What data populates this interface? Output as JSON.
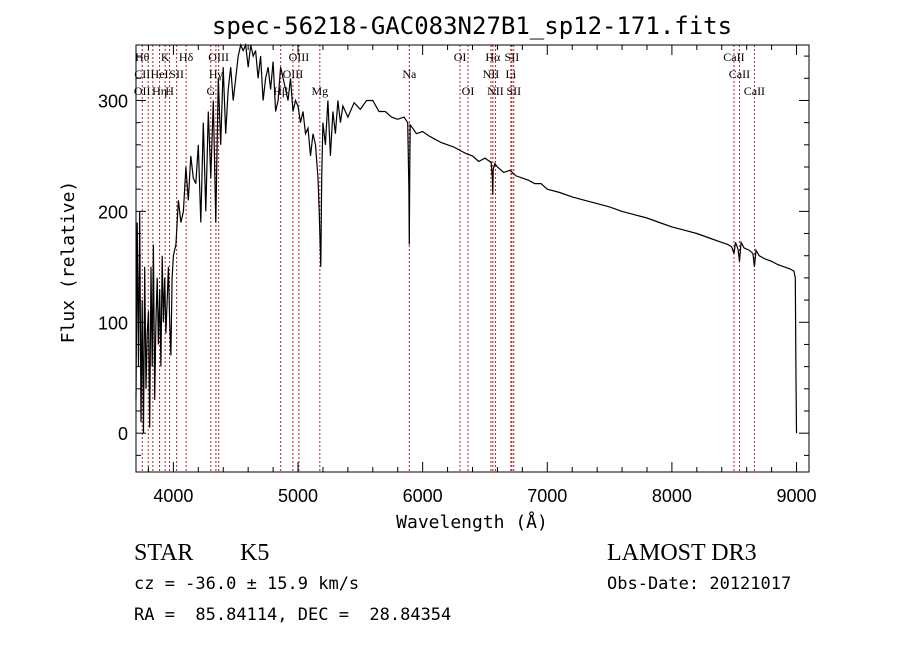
{
  "chart_data": {
    "type": "line",
    "title": "spec-56218-GAC083N27B1_sp12-171.fits",
    "xlabel": "Wavelength (Å)",
    "ylabel": "Flux (relative)",
    "xlim": [
      3700,
      9100
    ],
    "ylim": [
      -35,
      350
    ],
    "x_ticks": [
      4000,
      5000,
      6000,
      7000,
      8000,
      9000
    ],
    "x_tick_labels": [
      "4000",
      "5000",
      "6000",
      "7000",
      "8000",
      "9000"
    ],
    "y_ticks": [
      0,
      100,
      200,
      300
    ],
    "y_tick_labels": [
      "0",
      "100",
      "200",
      "300"
    ],
    "series": [
      {
        "name": "flux",
        "x": [
          3700,
          3710,
          3720,
          3730,
          3740,
          3750,
          3760,
          3770,
          3780,
          3790,
          3800,
          3810,
          3820,
          3830,
          3840,
          3850,
          3860,
          3870,
          3880,
          3890,
          3900,
          3910,
          3920,
          3930,
          3940,
          3950,
          3960,
          3970,
          3980,
          3990,
          4000,
          4020,
          4040,
          4060,
          4080,
          4100,
          4120,
          4140,
          4160,
          4180,
          4200,
          4220,
          4240,
          4260,
          4280,
          4300,
          4320,
          4340,
          4360,
          4380,
          4400,
          4420,
          4440,
          4460,
          4480,
          4500,
          4520,
          4540,
          4560,
          4580,
          4600,
          4620,
          4640,
          4660,
          4680,
          4700,
          4720,
          4740,
          4760,
          4780,
          4800,
          4820,
          4840,
          4860,
          4880,
          4900,
          4920,
          4940,
          4960,
          4980,
          5000,
          5020,
          5040,
          5060,
          5080,
          5100,
          5120,
          5140,
          5160,
          5170,
          5180,
          5183,
          5190,
          5200,
          5220,
          5240,
          5260,
          5280,
          5300,
          5320,
          5340,
          5360,
          5380,
          5400,
          5450,
          5500,
          5550,
          5600,
          5650,
          5700,
          5750,
          5800,
          5850,
          5880,
          5890,
          5893,
          5896,
          5900,
          5920,
          5950,
          6000,
          6050,
          6100,
          6150,
          6200,
          6250,
          6300,
          6350,
          6400,
          6450,
          6500,
          6550,
          6560,
          6563,
          6566,
          6580,
          6600,
          6650,
          6700,
          6750,
          6800,
          6850,
          6900,
          6950,
          7000,
          7100,
          7200,
          7300,
          7400,
          7500,
          7600,
          7700,
          7800,
          7900,
          8000,
          8100,
          8200,
          8300,
          8400,
          8450,
          8480,
          8498,
          8510,
          8530,
          8542,
          8555,
          8580,
          8620,
          8650,
          8662,
          8675,
          8700,
          8750,
          8800,
          8850,
          8900,
          8950,
          8980,
          8990,
          8995,
          9000
        ],
        "values": [
          30,
          190,
          60,
          200,
          10,
          120,
          0,
          150,
          40,
          90,
          110,
          5,
          150,
          60,
          170,
          30,
          100,
          140,
          80,
          130,
          60,
          160,
          100,
          140,
          90,
          120,
          150,
          100,
          70,
          140,
          160,
          170,
          210,
          190,
          200,
          240,
          210,
          250,
          230,
          225,
          260,
          190,
          280,
          200,
          290,
          230,
          300,
          190,
          320,
          260,
          330,
          270,
          310,
          330,
          300,
          320,
          340,
          350,
          345,
          355,
          330,
          350,
          340,
          345,
          320,
          340,
          300,
          320,
          330,
          310,
          335,
          290,
          300,
          330,
          320,
          310,
          300,
          320,
          290,
          300,
          295,
          280,
          290,
          270,
          275,
          250,
          270,
          260,
          230,
          200,
          160,
          150,
          230,
          280,
          260,
          300,
          250,
          290,
          270,
          300,
          280,
          295,
          290,
          285,
          298,
          292,
          300,
          300,
          290,
          290,
          285,
          283,
          285,
          280,
          220,
          170,
          230,
          278,
          275,
          270,
          272,
          268,
          265,
          262,
          260,
          258,
          255,
          252,
          250,
          245,
          248,
          244,
          230,
          215,
          238,
          243,
          240,
          235,
          237,
          232,
          230,
          228,
          225,
          225,
          220,
          217,
          213,
          210,
          207,
          204,
          200,
          197,
          194,
          190,
          186,
          183,
          180,
          176,
          172,
          170,
          168,
          162,
          172,
          166,
          155,
          172,
          167,
          165,
          162,
          150,
          165,
          160,
          157,
          155,
          152,
          150,
          148,
          146,
          140,
          60,
          0
        ]
      }
    ],
    "lines": [
      {
        "x": 3750,
        "top": "Hθ",
        "mid": "CII",
        "low": "OII"
      },
      {
        "x": 3798,
        "top": "",
        "mid": "",
        "low": ""
      },
      {
        "x": 3835,
        "top": "",
        "mid": "",
        "low": ""
      },
      {
        "x": 3889,
        "top": "",
        "mid": "HeI",
        "low": "Hη"
      },
      {
        "x": 3934,
        "top": "K",
        "mid": "",
        "low": ""
      },
      {
        "x": 3969,
        "top": "",
        "mid": "",
        "low": "H"
      },
      {
        "x": 4026,
        "top": "",
        "mid": "SII",
        "low": ""
      },
      {
        "x": 4102,
        "top": "Hδ",
        "mid": "",
        "low": ""
      },
      {
        "x": 4300,
        "top": "",
        "mid": "",
        "low": "G"
      },
      {
        "x": 4341,
        "top": "",
        "mid": "Hγ",
        "low": ""
      },
      {
        "x": 4363,
        "top": "OIII",
        "mid": "",
        "low": ""
      },
      {
        "x": 4861,
        "top": "",
        "mid": "",
        "low": "Hβ"
      },
      {
        "x": 4959,
        "top": "",
        "mid": "OIII",
        "low": ""
      },
      {
        "x": 5007,
        "top": "OIII",
        "mid": "",
        "low": ""
      },
      {
        "x": 5175,
        "top": "",
        "mid": "",
        "low": "Mg"
      },
      {
        "x": 5893,
        "top": "",
        "mid": "Na",
        "low": ""
      },
      {
        "x": 6300,
        "top": "OI",
        "mid": "",
        "low": ""
      },
      {
        "x": 6364,
        "top": "",
        "mid": "",
        "low": "OI"
      },
      {
        "x": 6548,
        "top": "",
        "mid": "NII",
        "low": ""
      },
      {
        "x": 6563,
        "top": "Hα",
        "mid": "",
        "low": ""
      },
      {
        "x": 6584,
        "top": "",
        "mid": "",
        "low": "NII"
      },
      {
        "x": 6708,
        "top": "",
        "mid": "Li",
        "low": ""
      },
      {
        "x": 6716,
        "top": "SII",
        "mid": "",
        "low": ""
      },
      {
        "x": 6731,
        "top": "",
        "mid": "",
        "low": "SII"
      },
      {
        "x": 8498,
        "top": "CaII",
        "mid": "",
        "low": ""
      },
      {
        "x": 8542,
        "top": "",
        "mid": "CaII",
        "low": ""
      },
      {
        "x": 8662,
        "top": "",
        "mid": "",
        "low": "CaII"
      }
    ]
  },
  "info": {
    "class_label": "STAR",
    "subclass": "K5",
    "survey": "LAMOST DR3",
    "cz": "cz = -36.0 ± 15.9 km/s",
    "obs_date": "Obs-Date: 20121017",
    "coords": "RA =  85.84114, DEC =  28.84354"
  },
  "colors": {
    "axis": "#000000",
    "spectrum": "#000000",
    "line_marker": "#b22222"
  }
}
